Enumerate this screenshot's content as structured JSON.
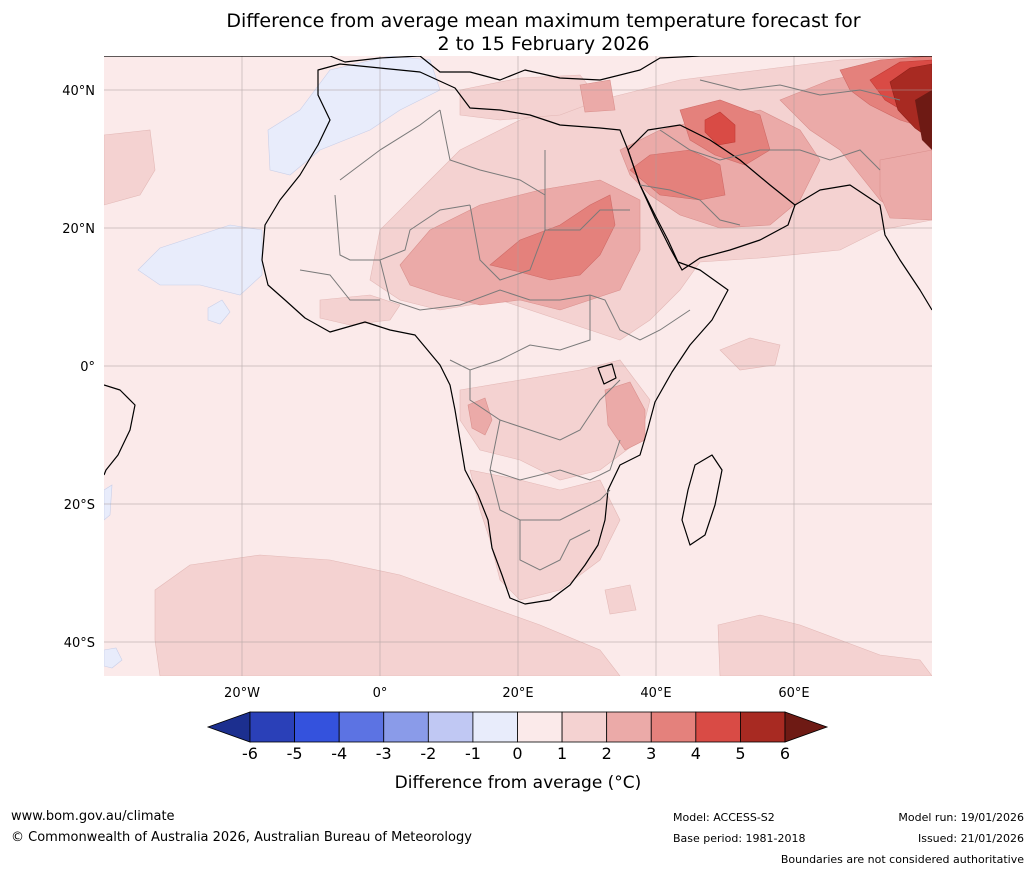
{
  "title": {
    "line1": "Difference from average mean maximum temperature forecast for",
    "line2": "2 to 15 February 2026"
  },
  "map": {
    "lat_labels": [
      "40°N",
      "20°N",
      "0°",
      "20°S",
      "40°S"
    ],
    "lon_labels": [
      "20°W",
      "0°",
      "20°E",
      "40°E",
      "60°E"
    ],
    "region": "Africa and Middle East",
    "extent": {
      "lon": [
        -40,
        80
      ],
      "lat": [
        -45,
        45
      ]
    }
  },
  "colorbar": {
    "ticks": [
      "-6",
      "-5",
      "-4",
      "-3",
      "-2",
      "-1",
      "0",
      "1",
      "2",
      "3",
      "4",
      "5",
      "6"
    ],
    "colors": [
      "#1c2f8f",
      "#2a40b8",
      "#3452dd",
      "#5c73e3",
      "#8a9be9",
      "#c0c8f3",
      "#e8ecfb",
      "#fbeaea",
      "#f4d2d1",
      "#ebaaa8",
      "#e4817c",
      "#d94b45",
      "#a82a22",
      "#6e1a14"
    ],
    "label": "Difference from average (°C)"
  },
  "footer": {
    "website": "www.bom.gov.au/climate",
    "copyright": "© Commonwealth of Australia 2026, Australian Bureau of Meteorology",
    "model": "Model: ACCESS-S2",
    "base_period": "Base period: 1981-2018",
    "model_run": "Model run: 19/01/2026",
    "issued": "Issued: 21/01/2026",
    "disclaimer": "Boundaries are not considered authoritative"
  }
}
